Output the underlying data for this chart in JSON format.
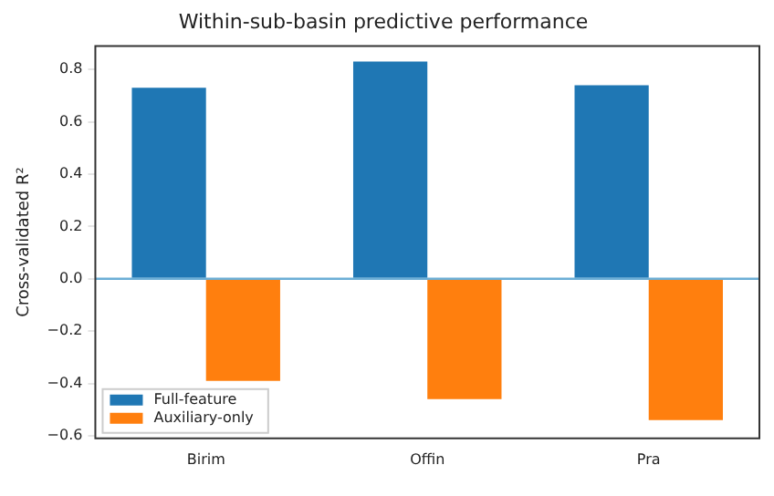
{
  "chart_data": {
    "type": "bar",
    "title": "Within-sub-basin predictive performance",
    "ylabel": "Cross-validated R²",
    "categories": [
      "Birim",
      "Offin",
      "Pra"
    ],
    "series": [
      {
        "name": "Full-feature",
        "color": "#1f77b4",
        "values": [
          0.73,
          0.83,
          0.74
        ]
      },
      {
        "name": "Auxiliary-only",
        "color": "#ff7f0e",
        "values": [
          -0.39,
          -0.46,
          -0.54
        ]
      }
    ],
    "ylim": [
      -0.61,
      0.89
    ],
    "yticks": [
      {
        "value": -0.6,
        "label": "−0.6"
      },
      {
        "value": -0.4,
        "label": "−0.4"
      },
      {
        "value": -0.2,
        "label": "−0.2"
      },
      {
        "value": 0,
        "label": "0.0"
      },
      {
        "value": 0.2,
        "label": "0.2"
      },
      {
        "value": 0.4,
        "label": "0.4"
      },
      {
        "value": 0.6,
        "label": "0.6"
      },
      {
        "value": 0.8,
        "label": "0.8"
      }
    ],
    "ref_lines": [
      {
        "axis": "y",
        "value": 0,
        "color": "#6baed6"
      }
    ],
    "grid": false,
    "legend": "bottom left"
  }
}
